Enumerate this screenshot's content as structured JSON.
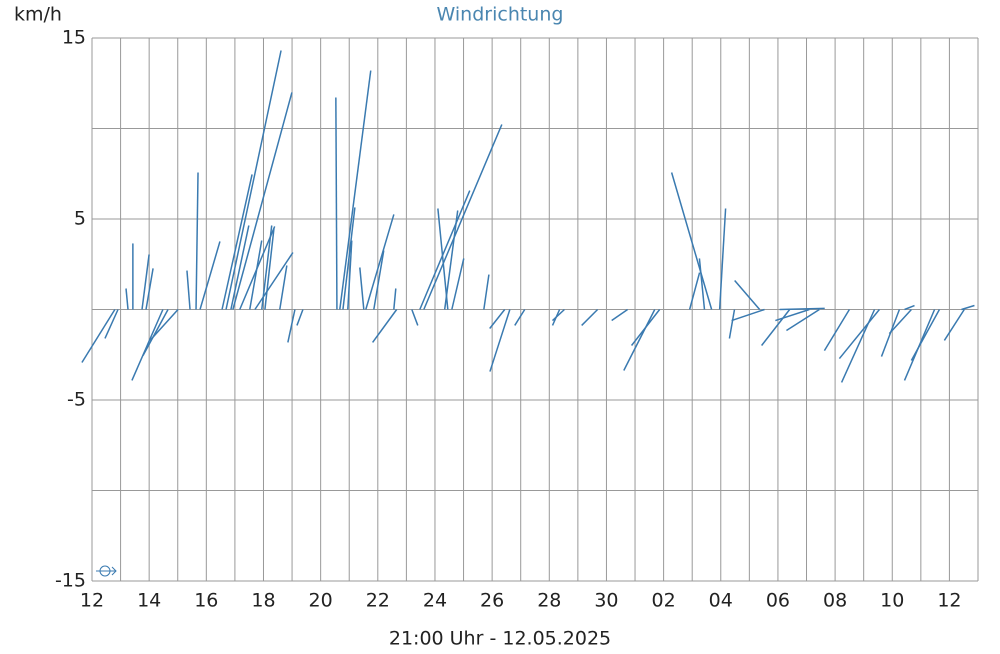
{
  "chart_data": {
    "type": "vector",
    "title": "Windrichtung",
    "y_label": "km/h",
    "x_label": "21:00 Uhr - 12.05.2025",
    "color": "#3a7ab0",
    "xlim": [
      0,
      31
    ],
    "ylim": [
      -15,
      15
    ],
    "xticks": [
      {
        "value": 0,
        "label": "12"
      },
      {
        "value": 2,
        "label": "14"
      },
      {
        "value": 4,
        "label": "16"
      },
      {
        "value": 6,
        "label": "18"
      },
      {
        "value": 8,
        "label": "20"
      },
      {
        "value": 10,
        "label": "22"
      },
      {
        "value": 12,
        "label": "24"
      },
      {
        "value": 14,
        "label": "26"
      },
      {
        "value": 16,
        "label": "28"
      },
      {
        "value": 18,
        "label": "30"
      },
      {
        "value": 20,
        "label": "02"
      },
      {
        "value": 22,
        "label": "04"
      },
      {
        "value": 24,
        "label": "06"
      },
      {
        "value": 26,
        "label": "08"
      },
      {
        "value": 28,
        "label": "10"
      },
      {
        "value": 30,
        "label": "12"
      }
    ],
    "yticks": [
      15,
      5,
      -5,
      -15
    ],
    "xgrid": [
      0,
      1,
      2,
      3,
      4,
      5,
      6,
      7,
      8,
      9,
      10,
      11,
      12,
      13,
      14,
      15,
      16,
      17,
      18,
      19,
      20,
      21,
      22,
      23,
      24,
      25,
      26,
      27,
      28,
      29,
      30,
      31
    ],
    "ygrid": [
      15,
      10,
      5,
      0,
      -5,
      -10,
      -15
    ],
    "x": [
      0.8,
      0.91,
      1.43,
      1.26,
      2.48,
      2.66,
      1.75,
      1.89,
      3.01,
      3.43,
      3.64,
      3.78,
      4.55,
      4.69,
      4.93,
      5.17,
      5.52,
      5.7,
      5.94,
      6.57,
      7.1,
      7.38,
      8.57,
      8.67,
      8.78,
      8.95,
      9.51,
      9.58,
      9.86,
      10.66,
      10.56,
      11.47,
      11.61,
      12.45,
      12.59,
      11.19,
      13.71,
      14.62,
      14.44,
      15.14,
      16.36,
      17.69,
      18.74,
      19.69,
      19.86,
      21.68,
      21.96,
      21.43,
      20.91,
      22.48,
      23.53,
      23.36,
      24.41,
      25.1,
      24.06,
      25.45,
      26.5,
      27.38,
      27.55,
      28.25,
      28.67,
      29.48,
      29.65,
      30.52,
      28.43,
      30.42,
      4.86,
      6.05,
      12.34,
      16.53
    ],
    "dx": [
      -1.82,
      -0.72,
      0,
      -0.11,
      -1.71,
      -1.38,
      0.39,
      0.39,
      -1.55,
      -0.17,
      0.11,
      1.1,
      1.66,
      3.04,
      3.26,
      1.93,
      0.66,
      2.1,
      0.55,
      0.39,
      -0.39,
      -0.33,
      -0.06,
      1.71,
      0.66,
      0.22,
      -0.22,
      1.55,
      0.55,
      -1.33,
      0.11,
      2.76,
      4.31,
      -0.55,
      0.66,
      0.33,
      0.28,
      -1.1,
      -0.83,
      -0.55,
      -0.39,
      -0.88,
      -0.88,
      -1.71,
      -1.55,
      -2.21,
      0.33,
      -0.28,
      0.55,
      -0.28,
      -1.82,
      -1.38,
      -1.55,
      -1.88,
      2.49,
      -1.82,
      -1.38,
      -1.82,
      -2.21,
      -0.99,
      -1.22,
      -1.66,
      -1.55,
      -1.1,
      0.55,
      0.72,
      0.99,
      0.5,
      0.72,
      -0.66
    ],
    "values": [
      -2.93,
      -1.6,
      3.65,
      1.16,
      -3.92,
      -2.54,
      3.04,
      2.27,
      -1.71,
      2.15,
      7.57,
      3.76,
      7.46,
      14.31,
      11.99,
      4.59,
      3.81,
      3.15,
      4.64,
      2.43,
      -1.82,
      -0.88,
      11.71,
      13.2,
      5.64,
      3.81,
      2.32,
      5.25,
      3.26,
      -1.82,
      1.16,
      6.57,
      10.22,
      5.58,
      2.82,
      -0.88,
      1.93,
      -3.43,
      -1.05,
      -0.88,
      -0.88,
      -0.88,
      -0.61,
      -3.37,
      -1.99,
      7.57,
      5.58,
      2.82,
      2.04,
      -1.6,
      -0.61,
      1.6,
      -1.99,
      -0.61,
      0.06,
      -1.16,
      -2.27,
      -4.03,
      -2.71,
      -2.6,
      -1.33,
      -3.92,
      -2.82,
      -1.71,
      0.22,
      0.22,
      4.64,
      4.48,
      5.47,
      -0.61
    ]
  }
}
